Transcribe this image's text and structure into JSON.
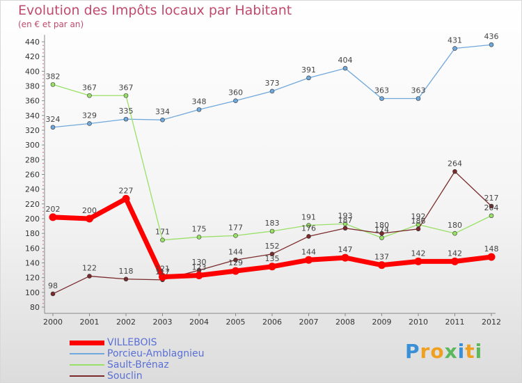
{
  "chart_data": {
    "type": "line",
    "title": "Evolution des Impôts locaux par Habitant",
    "subtitle": "(en € et par an)",
    "xlabel": "",
    "ylabel": "",
    "ylim": [
      80,
      440
    ],
    "yticks": [
      80,
      100,
      120,
      140,
      160,
      180,
      200,
      220,
      240,
      260,
      280,
      300,
      320,
      340,
      360,
      380,
      400,
      420,
      440
    ],
    "grid": false,
    "categories": [
      "2000",
      "2001",
      "2002",
      "2003",
      "2004",
      "2005",
      "2006",
      "2007",
      "2008",
      "2009",
      "2010",
      "2011",
      "2012"
    ],
    "series": [
      {
        "name": "VILLEBOIS",
        "color": "#ff0000",
        "values": [
          202,
          200,
          227,
          121,
          123,
          129,
          135,
          144,
          147,
          137,
          142,
          142,
          148
        ],
        "labels": [
          "202",
          "200",
          "227",
          "121",
          "123",
          "129",
          "135",
          "144",
          "147",
          "137",
          "142",
          "142",
          "148"
        ]
      },
      {
        "name": "Porcieu-Amblagnieu",
        "color": "#6fa8dc",
        "values": [
          324,
          329,
          335,
          334,
          348,
          360,
          373,
          391,
          404,
          363,
          363,
          431,
          436
        ],
        "labels": [
          "324",
          "329",
          "335",
          "334",
          "348",
          "360",
          "373",
          "391",
          "404",
          "363",
          "363",
          "431",
          "436"
        ]
      },
      {
        "name": "Sault-Brénaz",
        "color": "#99e066",
        "values": [
          382,
          367,
          367,
          171,
          175,
          177,
          183,
          191,
          193,
          174,
          192,
          180,
          204
        ],
        "labels": [
          "382",
          "367",
          "367",
          "171",
          "175",
          "177",
          "183",
          "191",
          "193",
          "174",
          "192",
          "180",
          "204"
        ]
      },
      {
        "name": "Souclin",
        "color": "#7a2a2a",
        "values": [
          98,
          122,
          118,
          117,
          130,
          144,
          152,
          176,
          187,
          180,
          186,
          264,
          217
        ],
        "labels": [
          "98",
          "122",
          "118",
          "117",
          "130",
          "144",
          "152",
          "176",
          "187",
          "180",
          "186",
          "264",
          "217"
        ]
      }
    ]
  },
  "brand": {
    "letters": [
      "P",
      "r",
      "o",
      "x",
      "i",
      "t",
      "i"
    ],
    "colors": [
      "#3a8fd6",
      "#f0a020",
      "#f0a020",
      "#5cb85c",
      "#3a8fd6",
      "#f0a020",
      "#5cb85c"
    ]
  }
}
